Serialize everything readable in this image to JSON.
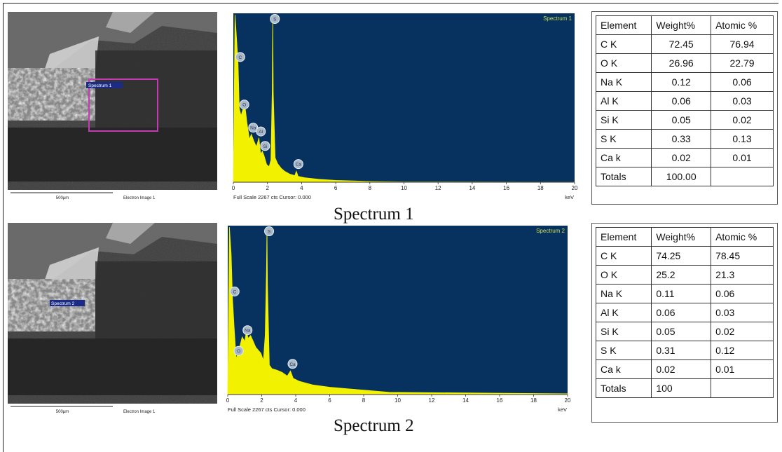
{
  "panels": [
    {
      "sem": {
        "spectrum_label": "Spectrum 1",
        "scale_label": "500µm",
        "image_label": "Electron Image 1",
        "has_box": true
      },
      "caption": "Spectrum 1",
      "table": {
        "headers": [
          "Element",
          "Weight%",
          "Atomic %"
        ],
        "rows": [
          [
            "C K",
            "72.45",
            "76.94"
          ],
          [
            "O K",
            "26.96",
            "22.79"
          ],
          [
            "Na K",
            "0.12",
            "0.06"
          ],
          [
            "Al K",
            "0.06",
            "0.03"
          ],
          [
            "Si K",
            "0.05",
            "0.02"
          ],
          [
            "S K",
            "0.33",
            "0.13"
          ],
          [
            "Ca k",
            "0.02",
            "0.01"
          ],
          [
            "Totals",
            "100.00",
            ""
          ]
        ]
      }
    },
    {
      "sem": {
        "spectrum_label": "Spectrum 2",
        "scale_label": "500µm",
        "image_label": "Electron Image 1",
        "has_box": false
      },
      "caption": "Spectrum 2",
      "table": {
        "headers": [
          "Element",
          "Weight%",
          "Atomic %"
        ],
        "rows": [
          [
            "C K",
            "74.25",
            "78.45"
          ],
          [
            "O K",
            "25.2",
            "21.3"
          ],
          [
            "Na K",
            "0.11",
            "0.06"
          ],
          [
            "Al K",
            "0.06",
            "0.03"
          ],
          [
            "Si K",
            "0.05",
            "0.02"
          ],
          [
            "S K",
            "0.31",
            "0.12"
          ],
          [
            "Ca k",
            "0.02",
            "0.01"
          ],
          [
            "Totals",
            "100",
            ""
          ]
        ]
      }
    }
  ],
  "chart_data": [
    {
      "type": "area",
      "title": "Spectrum 1",
      "footer": "Full Scale 2267 cts Cursor: 0.000",
      "xlabel": "keV",
      "xlim": [
        0,
        20
      ],
      "xticks": [
        "0",
        "2",
        "4",
        "6",
        "8",
        "10",
        "12",
        "14",
        "16",
        "18",
        "20"
      ],
      "colors": {
        "background": "#07315e",
        "fill": "#f2f200",
        "title": "#c8e05a"
      },
      "x": [
        0,
        0.1,
        0.2,
        0.28,
        0.35,
        0.45,
        0.55,
        0.65,
        0.8,
        0.95,
        1.05,
        1.2,
        1.35,
        1.5,
        1.6,
        1.7,
        1.8,
        1.95,
        2.1,
        2.2,
        2.28,
        2.31,
        2.34,
        2.45,
        2.6,
        2.8,
        3.0,
        3.3,
        3.6,
        3.69,
        3.8,
        4.2,
        5,
        6,
        8,
        10,
        20
      ],
      "values": [
        0,
        2267,
        1900,
        1600,
        1000,
        900,
        980,
        1100,
        800,
        580,
        650,
        560,
        480,
        600,
        380,
        420,
        360,
        240,
        210,
        300,
        1250,
        2267,
        1200,
        330,
        250,
        190,
        150,
        110,
        90,
        150,
        80,
        60,
        40,
        25,
        10,
        5,
        2
      ],
      "peaks": [
        {
          "x": 0.28,
          "label": "C"
        },
        {
          "x": 0.52,
          "label": "O"
        },
        {
          "x": 1.04,
          "label": "Na"
        },
        {
          "x": 1.49,
          "label": "Al"
        },
        {
          "x": 1.74,
          "label": "Si"
        },
        {
          "x": 2.31,
          "label": "S"
        },
        {
          "x": 3.69,
          "label": "Ca"
        }
      ]
    },
    {
      "type": "area",
      "title": "Spectrum 2",
      "footer": "Full Scale 2267 cts Cursor: 0.000",
      "xlabel": "keV",
      "xlim": [
        0,
        20
      ],
      "xticks": [
        "0",
        "2",
        "4",
        "6",
        "8",
        "10",
        "12",
        "14",
        "16",
        "18",
        "20"
      ],
      "colors": {
        "background": "#07315e",
        "fill": "#f2f200",
        "title": "#c8e05a"
      },
      "x": [
        0,
        0.1,
        0.2,
        0.28,
        0.38,
        0.5,
        0.6,
        0.7,
        0.85,
        1.0,
        1.1,
        1.2,
        1.35,
        1.5,
        1.65,
        1.8,
        1.95,
        2.1,
        2.2,
        2.28,
        2.31,
        2.34,
        2.45,
        2.6,
        2.9,
        3.2,
        3.5,
        3.69,
        3.85,
        4.2,
        5,
        6,
        7,
        8,
        9.5,
        20
      ],
      "values": [
        0,
        2267,
        1900,
        1300,
        900,
        480,
        560,
        640,
        780,
        720,
        860,
        760,
        800,
        720,
        640,
        600,
        560,
        460,
        800,
        1700,
        2267,
        1500,
        400,
        350,
        330,
        300,
        250,
        320,
        220,
        180,
        130,
        100,
        80,
        60,
        30,
        10
      ],
      "peaks": [
        {
          "x": 0.28,
          "label": "C"
        },
        {
          "x": 0.52,
          "label": "O"
        },
        {
          "x": 1.04,
          "label": "Na"
        },
        {
          "x": 2.31,
          "label": "S"
        },
        {
          "x": 3.69,
          "label": "Ca"
        }
      ]
    }
  ]
}
